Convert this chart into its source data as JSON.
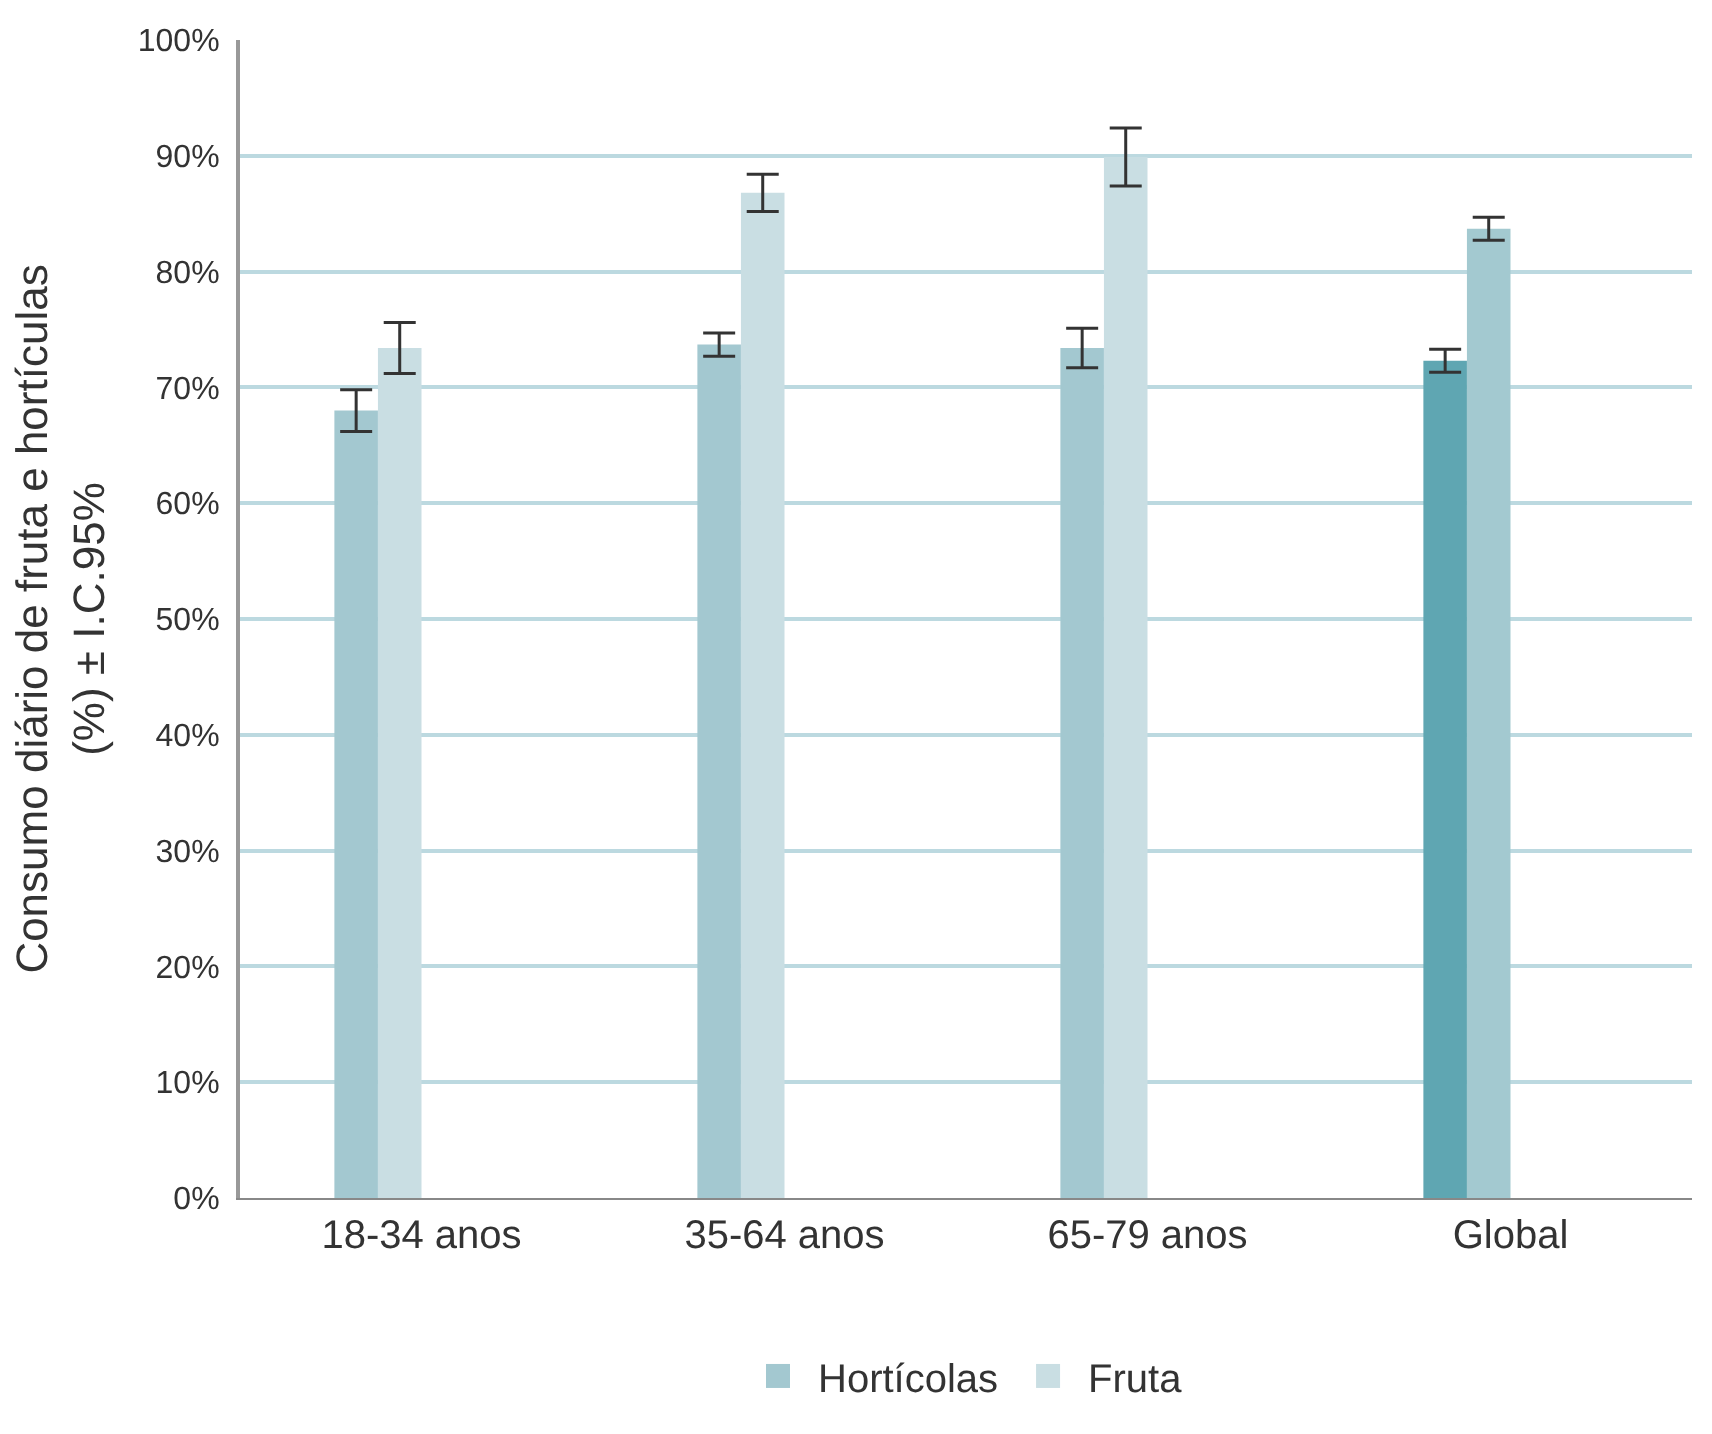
{
  "chart_data": {
    "type": "bar",
    "ylabel": "Consumo diário de fruta e hortículas\n(%) ± I.C.95%",
    "categories": [
      "18-34 anos",
      "35-64 anos",
      "65-79 anos",
      "Global"
    ],
    "series": [
      {
        "name": "Hortícolas",
        "color": "#a3c8d0",
        "colors": [
          "#a3c8d0",
          "#a3c8d0",
          "#a3c8d0",
          "#5fa6b2"
        ],
        "values": [
          68,
          73.7,
          73.4,
          72.3
        ],
        "errors": [
          1.8,
          1,
          1.7,
          1
        ]
      },
      {
        "name": "Fruta",
        "color": "#c9dee3",
        "colors": [
          "#c9dee3",
          "#c9dee3",
          "#c9dee3",
          "#a3c9d0"
        ],
        "values": [
          73.4,
          86.8,
          89.9,
          83.7
        ],
        "errors": [
          2.2,
          1.6,
          2.5,
          1
        ]
      }
    ],
    "ylim": [
      0,
      100
    ],
    "yticks": [
      {
        "value": 0,
        "label": "0%"
      },
      {
        "value": 10,
        "label": "10%"
      },
      {
        "value": 20,
        "label": "20%"
      },
      {
        "value": 30,
        "label": "30%"
      },
      {
        "value": 40,
        "label": "40%"
      },
      {
        "value": 50,
        "label": "50%"
      },
      {
        "value": 60,
        "label": "60%"
      },
      {
        "value": 70,
        "label": "70%"
      },
      {
        "value": 80,
        "label": "80%"
      },
      {
        "value": 90,
        "label": "90%"
      },
      {
        "value": 100,
        "label": "100%"
      }
    ],
    "grid": "y",
    "legend": "bottom"
  }
}
